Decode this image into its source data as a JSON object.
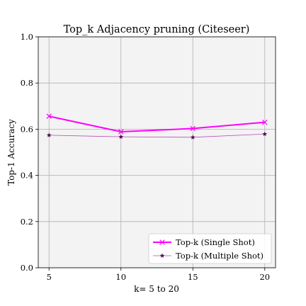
{
  "chart_data": {
    "type": "line",
    "title": "Top_k Adjacency pruning (Citeseer)",
    "xlabel": "k= 5 to 20",
    "ylabel": "Top-1 Accuracy",
    "x": [
      5,
      10,
      15,
      20
    ],
    "xticks": [
      "5",
      "10",
      "15",
      "20"
    ],
    "xlim": [
      4.25,
      20.75
    ],
    "ylim": [
      0.0,
      1.0
    ],
    "yticks": [
      "0.0",
      "0.2",
      "0.4",
      "0.6",
      "0.8",
      "1.0"
    ],
    "grid": true,
    "legend_position": "lower-right",
    "series": [
      {
        "name": "Top-k (Single Shot)",
        "values": [
          0.656,
          0.589,
          0.603,
          0.63
        ],
        "color": "#ff00ff",
        "marker": "x"
      },
      {
        "name": "Top-k (Multiple Shot)",
        "values": [
          0.574,
          0.567,
          0.565,
          0.579
        ],
        "color": "#b64fb6",
        "marker_color": "#4b0f4b",
        "marker": "star"
      }
    ]
  }
}
